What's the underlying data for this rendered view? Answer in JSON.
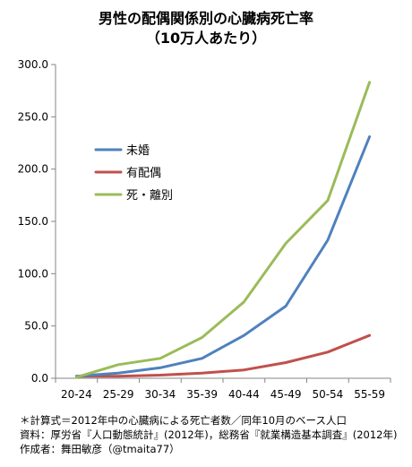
{
  "title_lines": [
    "男性の配偶関係別の心臓病死亡率",
    "（10万人あたり）"
  ],
  "chart_data": {
    "type": "line",
    "title": "男性の配偶関係別の心臓病死亡率（10万人あたり）",
    "categories": [
      "20-24",
      "25-29",
      "30-34",
      "35-39",
      "40-44",
      "45-49",
      "50-54",
      "55-59"
    ],
    "ylim": [
      0,
      300
    ],
    "yticks": [
      "0.0",
      "50.0",
      "100.0",
      "150.0",
      "200.0",
      "250.0",
      "300.0"
    ],
    "grid": false,
    "legend_position": "upper-left",
    "series": [
      {
        "name": "未婚",
        "color": "#4f81bd",
        "values": [
          2,
          5,
          10,
          19,
          41,
          69,
          132,
          231
        ]
      },
      {
        "name": "有配偶",
        "color": "#c0504d",
        "values": [
          2,
          2,
          3,
          5,
          8,
          15,
          25,
          41
        ]
      },
      {
        "name": "死・離別",
        "color": "#9bbb59",
        "values": [
          1,
          13,
          19,
          39,
          73,
          129,
          170,
          283
        ]
      }
    ]
  },
  "notes": [
    "＊計算式＝2012年中の心臓病による死亡者数／同年10月のベース人口",
    "資料：厚労省『人口動態統計』(2012年)，総務省『就業構造基本調査』(2012年)",
    "作成者：舞田敏彦（@tmaita77）"
  ]
}
